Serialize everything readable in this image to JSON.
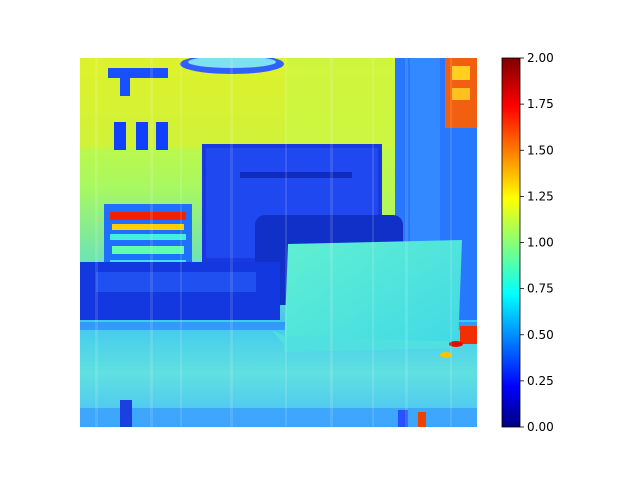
{
  "image": {
    "description_icon": "false-color-heatmap-photo",
    "colormap": "jet"
  },
  "colorbar": {
    "min": 0.0,
    "max": 2.0,
    "ticks": [
      "0.00",
      "0.25",
      "0.50",
      "0.75",
      "1.00",
      "1.25",
      "1.50",
      "1.75",
      "2.00"
    ],
    "colors": [
      "#00007f",
      "#0000ff",
      "#007fff",
      "#00ffff",
      "#7fff7f",
      "#ffff00",
      "#ff7f00",
      "#ff0000",
      "#7f0000"
    ]
  }
}
